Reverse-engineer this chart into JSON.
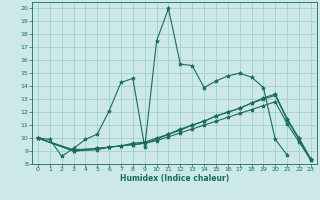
{
  "title": "",
  "xlabel": "Humidex (Indice chaleur)",
  "bg_color": "#cce8e8",
  "line_color": "#1a6b5a",
  "grid_color": "#99cccc",
  "xlim": [
    -0.5,
    23.5
  ],
  "ylim": [
    8,
    20.5
  ],
  "xticks": [
    0,
    1,
    2,
    3,
    4,
    5,
    6,
    7,
    8,
    9,
    10,
    11,
    12,
    13,
    14,
    15,
    16,
    17,
    18,
    19,
    20,
    21,
    22,
    23
  ],
  "yticks": [
    8,
    9,
    10,
    11,
    12,
    13,
    14,
    15,
    16,
    17,
    18,
    19,
    20
  ],
  "series": [
    {
      "x": [
        0,
        1,
        2,
        3,
        4,
        5,
        6,
        7,
        8,
        9,
        10,
        11,
        12,
        13,
        14,
        15,
        16,
        17,
        18,
        19,
        20,
        21
      ],
      "y": [
        10.0,
        9.9,
        8.6,
        9.2,
        9.9,
        10.3,
        12.1,
        14.3,
        14.6,
        9.3,
        17.5,
        20.0,
        15.7,
        15.6,
        13.9,
        14.4,
        14.8,
        15.0,
        14.7,
        13.9,
        9.9,
        8.7
      ]
    },
    {
      "x": [
        0,
        3,
        5,
        6,
        7,
        8,
        9,
        10,
        11,
        12,
        13,
        14,
        15,
        16,
        17,
        18,
        19,
        20,
        21,
        22,
        23
      ],
      "y": [
        10.0,
        9.0,
        9.2,
        9.3,
        9.4,
        9.5,
        9.6,
        9.9,
        10.3,
        10.6,
        11.0,
        11.3,
        11.7,
        12.0,
        12.3,
        12.7,
        13.0,
        13.3,
        11.4,
        9.9,
        8.3
      ]
    },
    {
      "x": [
        0,
        3,
        5,
        6,
        7,
        8,
        9,
        10,
        11,
        12,
        13,
        14,
        15,
        16,
        17,
        18,
        19,
        20,
        21,
        22,
        23
      ],
      "y": [
        10.0,
        9.1,
        9.2,
        9.3,
        9.4,
        9.6,
        9.7,
        10.0,
        10.3,
        10.7,
        11.0,
        11.3,
        11.7,
        12.0,
        12.3,
        12.7,
        13.1,
        13.4,
        11.5,
        10.0,
        8.4
      ]
    },
    {
      "x": [
        0,
        3,
        5,
        6,
        7,
        8,
        9,
        10,
        11,
        12,
        13,
        14,
        15,
        16,
        17,
        18,
        19,
        20,
        21,
        22,
        23
      ],
      "y": [
        10.0,
        9.0,
        9.1,
        9.3,
        9.4,
        9.5,
        9.6,
        9.8,
        10.1,
        10.4,
        10.7,
        11.0,
        11.3,
        11.6,
        11.9,
        12.2,
        12.5,
        12.8,
        11.1,
        9.7,
        8.3
      ]
    }
  ]
}
